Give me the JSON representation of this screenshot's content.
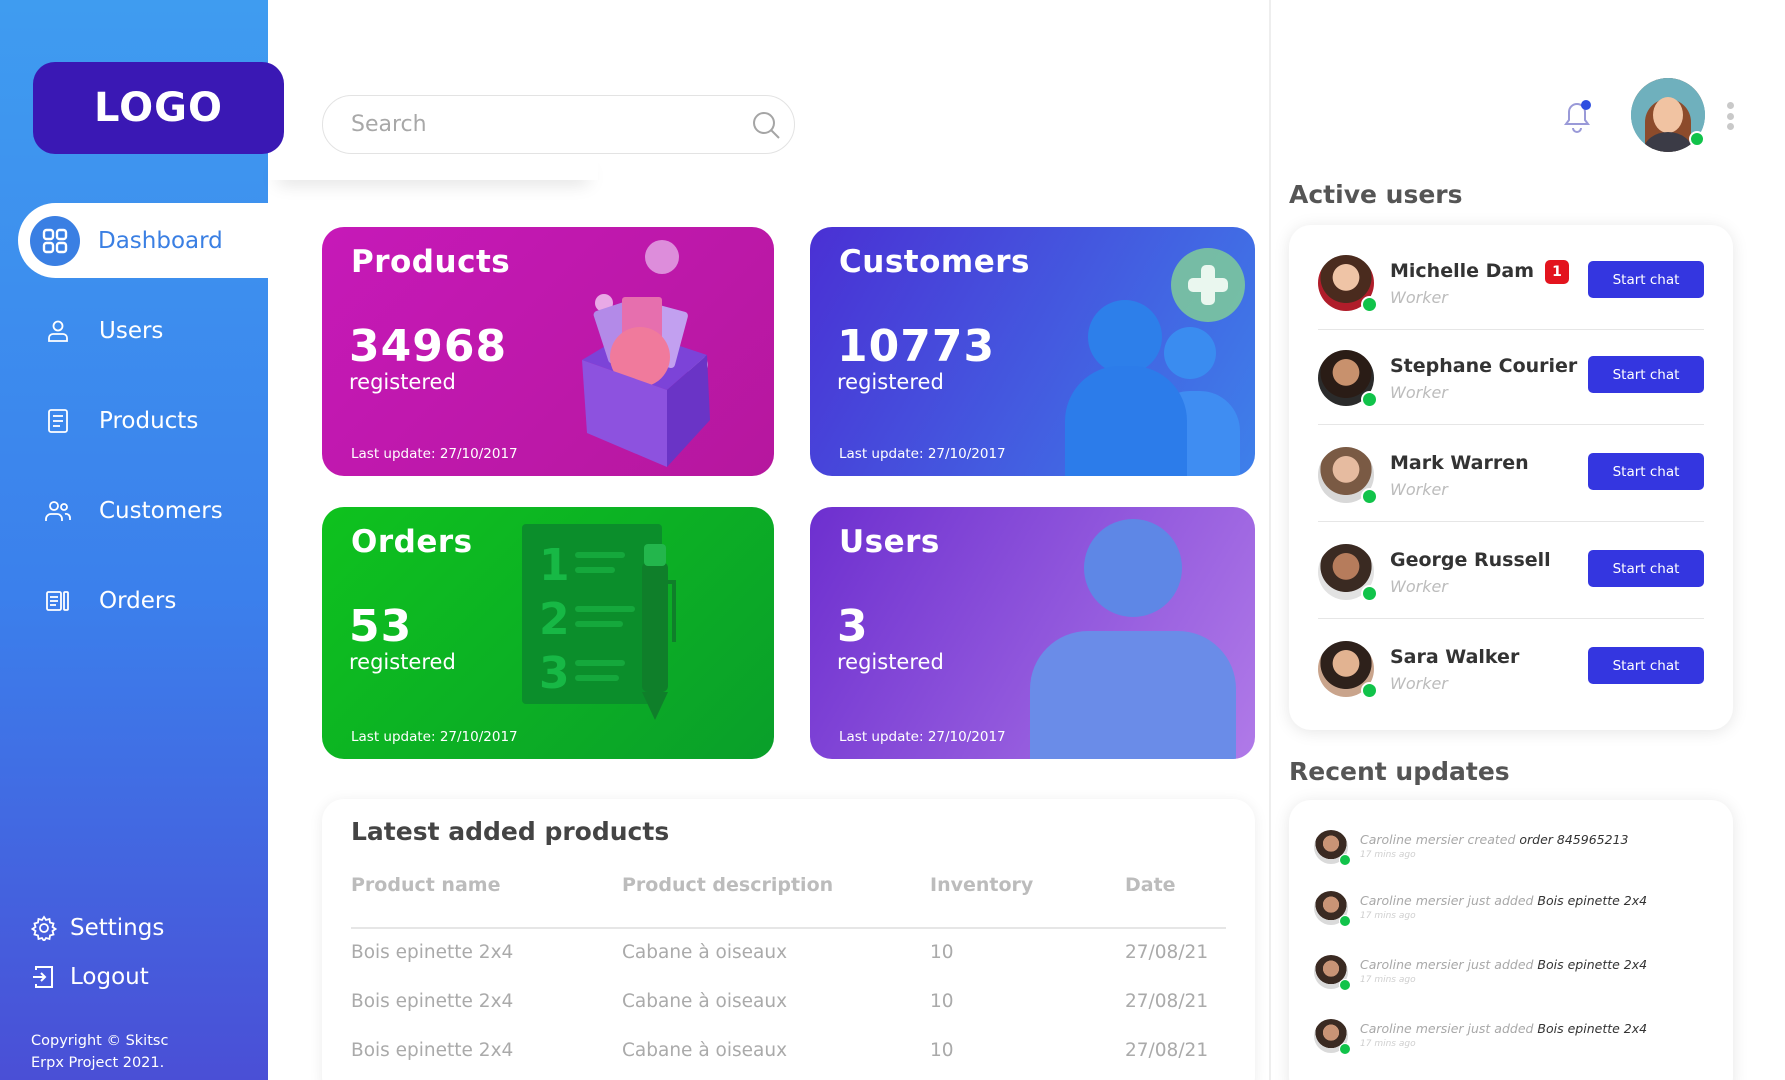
{
  "brand": {
    "logo": "LOGO"
  },
  "sidebar": {
    "items": [
      {
        "label": "Dashboard",
        "icon": "grid-icon"
      },
      {
        "label": "Users",
        "icon": "user-icon"
      },
      {
        "label": "Products",
        "icon": "document-icon"
      },
      {
        "label": "Customers",
        "icon": "users-icon"
      },
      {
        "label": "Orders",
        "icon": "orders-icon"
      }
    ],
    "settings_label": "Settings",
    "logout_label": "Logout",
    "copyright_line1": "Copyright © Skitsc",
    "copyright_line2": "Erpx Project 2021."
  },
  "search": {
    "placeholder": "Search"
  },
  "cards": {
    "products": {
      "title": "Products",
      "count": "34968",
      "sub": "registered",
      "updated": "Last update: 27/10/2017",
      "color": "#c619b8"
    },
    "customers": {
      "title": "Customers",
      "count": "10773",
      "sub": "registered",
      "updated": "Last update: 27/10/2017",
      "color": "#3e80ea"
    },
    "orders": {
      "title": "Orders",
      "count": "53",
      "sub": "registered",
      "updated": "Last update: 27/10/2017",
      "color": "#0ec21e"
    },
    "users": {
      "title": "Users",
      "count": "3",
      "sub": "registered",
      "updated": "Last update: 27/10/2017",
      "color": "#6d2fcf"
    }
  },
  "latest": {
    "title": "Latest added products",
    "columns": [
      "Product name",
      "Product description",
      "Inventory",
      "Date"
    ],
    "rows": [
      [
        "Bois epinette 2x4",
        "Cabane à oiseaux",
        "10",
        "27/08/21"
      ],
      [
        "Bois epinette 2x4",
        "Cabane à oiseaux",
        "10",
        "27/08/21"
      ],
      [
        "Bois epinette 2x4",
        "Cabane à oiseaux",
        "10",
        "27/08/21"
      ]
    ]
  },
  "active_users": {
    "title": "Active users",
    "chat_label": "Start chat",
    "users": [
      {
        "name": "Michelle Dam",
        "role": "Worker",
        "badge": "1"
      },
      {
        "name": "Stephane Courier",
        "role": "Worker"
      },
      {
        "name": "Mark Warren",
        "role": "Worker"
      },
      {
        "name": "George Russell",
        "role": "Worker"
      },
      {
        "name": "Sara Walker",
        "role": "Worker"
      }
    ]
  },
  "recent_updates": {
    "title": "Recent updates",
    "items": [
      {
        "text": "Caroline mersier created",
        "highlight": "order 845965213",
        "time": "17 mins ago"
      },
      {
        "text": "Caroline mersier just added",
        "highlight": "Bois epinette 2x4",
        "time": "17 mins ago"
      },
      {
        "text": "Caroline mersier just added",
        "highlight": "Bois epinette 2x4",
        "time": "17 mins ago"
      },
      {
        "text": "Caroline mersier just added",
        "highlight": "Bois epinette 2x4",
        "time": "17 mins ago"
      }
    ]
  },
  "colors": {
    "accent": "#3436e0",
    "sidebar": "#3f9cf0",
    "online": "#11c34a",
    "badge": "#e3141e",
    "logo_bg": "#3a18b4"
  }
}
